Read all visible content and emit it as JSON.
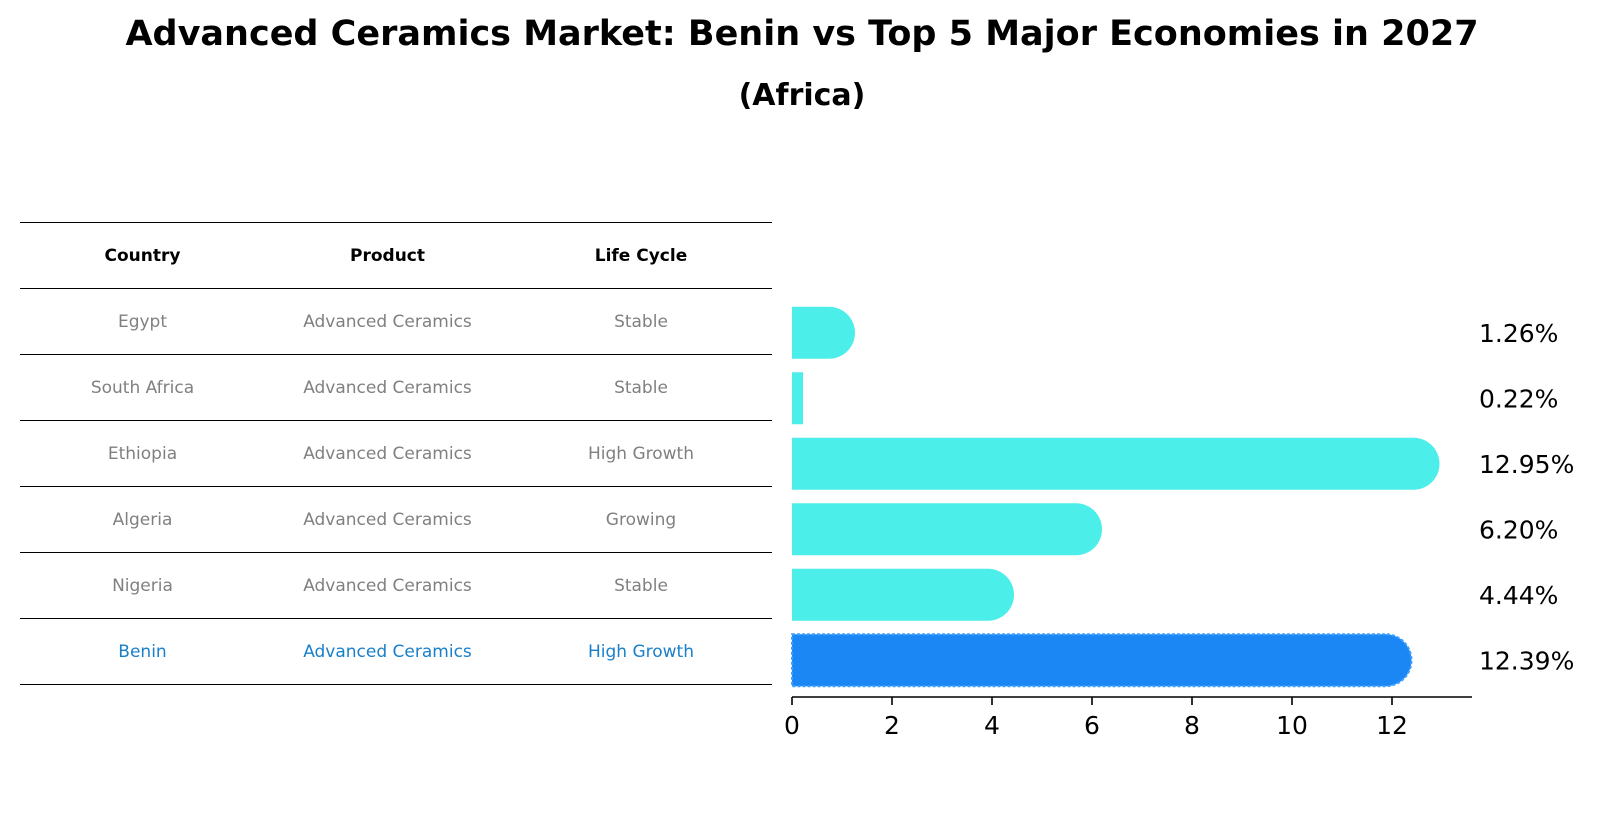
{
  "title": "Advanced Ceramics Market: Benin vs Top 5 Major Economies in 2027",
  "subtitle": "(Africa)",
  "table": {
    "headers": [
      "Country",
      "Product",
      "Life Cycle"
    ],
    "rows": [
      {
        "country": "Egypt",
        "product": "Advanced Ceramics",
        "life_cycle": "Stable",
        "highlight": false
      },
      {
        "country": "South Africa",
        "product": "Advanced Ceramics",
        "life_cycle": "Stable",
        "highlight": false
      },
      {
        "country": "Ethiopia",
        "product": "Advanced Ceramics",
        "life_cycle": "High Growth",
        "highlight": false
      },
      {
        "country": "Algeria",
        "product": "Advanced Ceramics",
        "life_cycle": "Growing",
        "highlight": false
      },
      {
        "country": "Nigeria",
        "product": "Advanced Ceramics",
        "life_cycle": "Stable",
        "highlight": false
      },
      {
        "country": "Benin",
        "product": "Advanced Ceramics",
        "life_cycle": "High Growth",
        "highlight": true
      }
    ]
  },
  "colors": {
    "bar": "#4ceeea",
    "highlight_bar": "#1a87f5",
    "highlight_text": "#1a7fc9",
    "muted_text": "#808080"
  },
  "chart_data": {
    "type": "bar",
    "orientation": "horizontal",
    "categories": [
      "Egypt",
      "South Africa",
      "Ethiopia",
      "Algeria",
      "Nigeria",
      "Benin"
    ],
    "values": [
      1.26,
      0.22,
      12.95,
      6.2,
      4.44,
      12.39
    ],
    "value_labels": [
      "1.26%",
      "0.22%",
      "12.95%",
      "6.20%",
      "4.44%",
      "12.39%"
    ],
    "highlight_category": "Benin",
    "xlim": [
      0,
      13.6
    ],
    "xticks": [
      0,
      2,
      4,
      6,
      8,
      10,
      12
    ],
    "xlabel": "",
    "ylabel": "",
    "grid": false
  }
}
